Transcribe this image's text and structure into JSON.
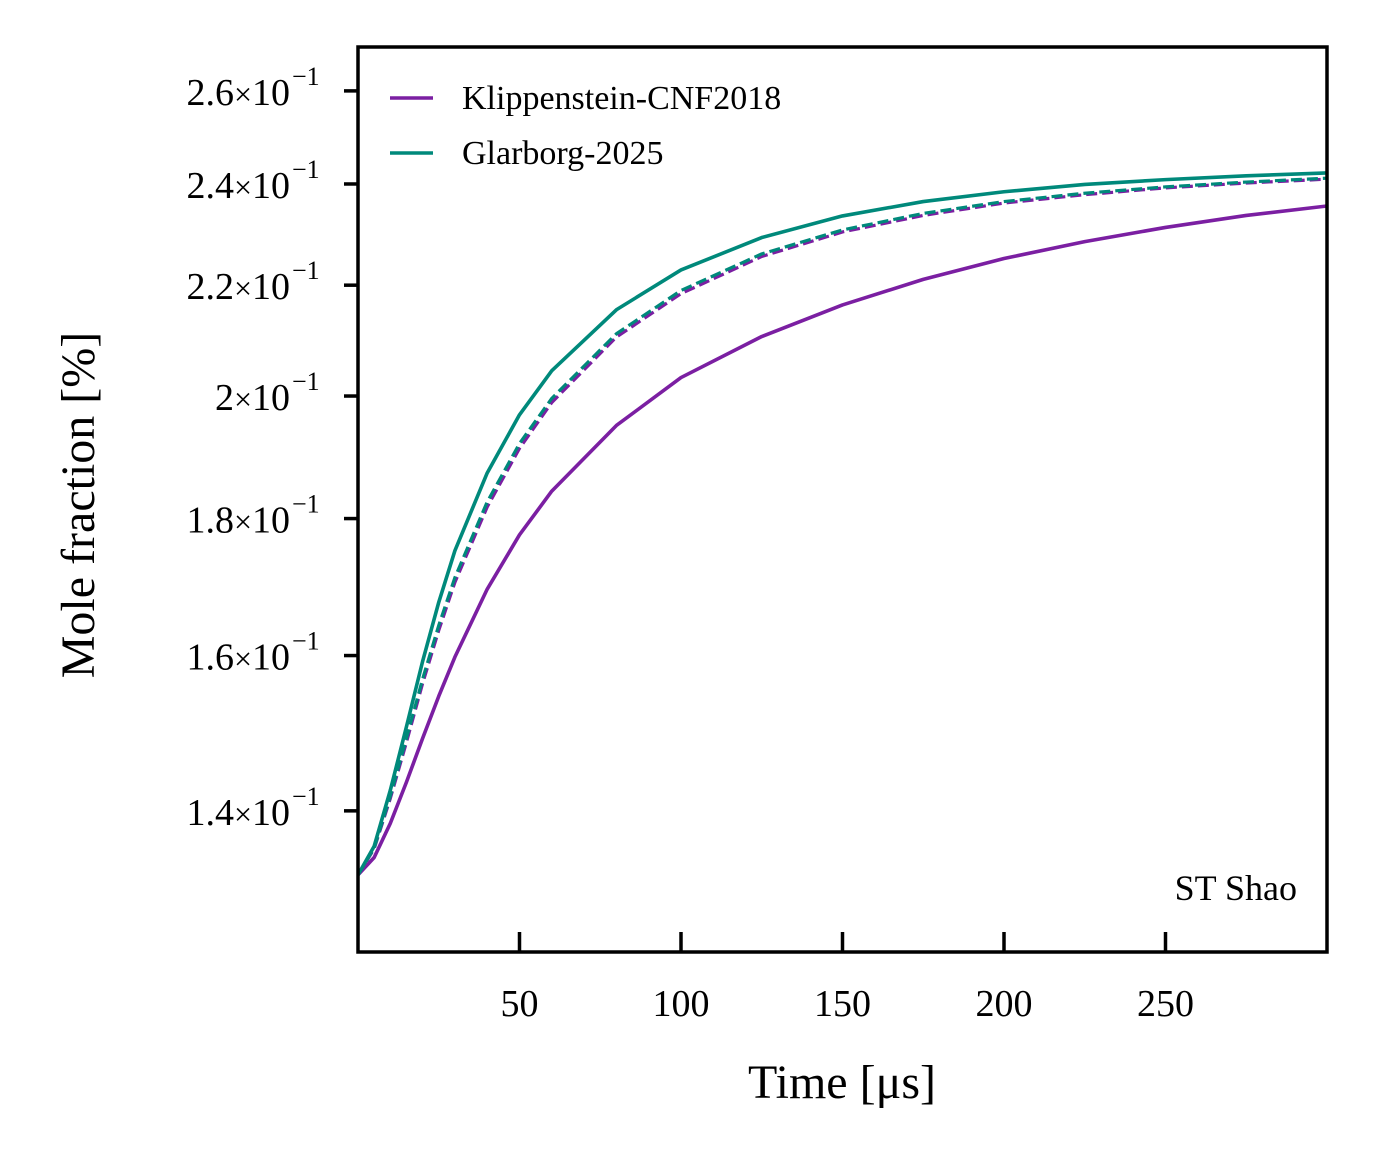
{
  "chart_data": {
    "type": "line",
    "xlabel": "Time [μs]",
    "ylabel": "Mole fraction [%]",
    "xlim": [
      0,
      300
    ],
    "ylim": [
      0.124,
      0.27
    ],
    "yscale": "log",
    "grid": false,
    "legend_position": "top-left",
    "annotation": "ST Shao",
    "x_ticks": [
      {
        "value": 50,
        "label": "50"
      },
      {
        "value": 100,
        "label": "100"
      },
      {
        "value": 150,
        "label": "150"
      },
      {
        "value": 200,
        "label": "200"
      },
      {
        "value": 250,
        "label": "250"
      }
    ],
    "y_ticks": [
      {
        "value": 0.14,
        "mantissa": "1.4",
        "base": "10",
        "exponent": "−1"
      },
      {
        "value": 0.16,
        "mantissa": "1.6",
        "base": "10",
        "exponent": "−1"
      },
      {
        "value": 0.18,
        "mantissa": "1.8",
        "base": "10",
        "exponent": "−1"
      },
      {
        "value": 0.2,
        "mantissa": "2",
        "base": "10",
        "exponent": "−1"
      },
      {
        "value": 0.22,
        "mantissa": "2.2",
        "base": "10",
        "exponent": "−1"
      },
      {
        "value": 0.24,
        "mantissa": "2.4",
        "base": "10",
        "exponent": "−1"
      },
      {
        "value": 0.26,
        "mantissa": "2.6",
        "base": "10",
        "exponent": "−1"
      }
    ],
    "series": [
      {
        "name": "Klippenstein-CNF2018",
        "color": "#7b1fa2",
        "style": "solid",
        "x": [
          0,
          5,
          10,
          15,
          20,
          25,
          30,
          40,
          50,
          60,
          80,
          100,
          125,
          150,
          175,
          200,
          225,
          250,
          275,
          300
        ],
        "y": [
          0.1325,
          0.1345,
          0.1385,
          0.1435,
          0.149,
          0.1545,
          0.1598,
          0.1694,
          0.1775,
          0.1843,
          0.195,
          0.2032,
          0.2105,
          0.2163,
          0.2211,
          0.2251,
          0.2284,
          0.2312,
          0.2336,
          0.2355
        ]
      },
      {
        "name": "",
        "color": "#7b1fa2",
        "style": "dashed",
        "x": [
          0,
          5,
          10,
          15,
          20,
          25,
          30,
          40,
          50,
          60,
          80,
          100,
          125,
          150,
          175,
          200,
          225,
          250,
          275,
          300
        ],
        "y": [
          0.1325,
          0.1355,
          0.1415,
          0.1485,
          0.1562,
          0.1635,
          0.1704,
          0.1818,
          0.1912,
          0.1989,
          0.2104,
          0.2184,
          0.2255,
          0.2303,
          0.2336,
          0.2361,
          0.2378,
          0.2392,
          0.2402,
          0.241
        ]
      },
      {
        "name": "Glarborg-2025",
        "color": "#00897b",
        "style": "solid",
        "x": [
          0,
          5,
          10,
          15,
          20,
          25,
          30,
          40,
          50,
          60,
          80,
          100,
          125,
          150,
          175,
          200,
          225,
          250,
          275,
          300
        ],
        "y": [
          0.1325,
          0.1358,
          0.1425,
          0.1505,
          0.1592,
          0.1675,
          0.1751,
          0.1872,
          0.1968,
          0.2044,
          0.2154,
          0.2229,
          0.2292,
          0.2335,
          0.2364,
          0.2384,
          0.2399,
          0.2409,
          0.2417,
          0.2423
        ]
      },
      {
        "name": "",
        "color": "#00897b",
        "style": "dashed",
        "x": [
          0,
          5,
          10,
          15,
          20,
          25,
          30,
          40,
          50,
          60,
          80,
          100,
          125,
          150,
          175,
          200,
          225,
          250,
          275,
          300
        ],
        "y": [
          0.1325,
          0.1356,
          0.1418,
          0.149,
          0.1568,
          0.1642,
          0.1711,
          0.1826,
          0.192,
          0.1996,
          0.211,
          0.219,
          0.226,
          0.2307,
          0.234,
          0.2364,
          0.2381,
          0.2394,
          0.2404,
          0.2412
        ]
      }
    ]
  }
}
